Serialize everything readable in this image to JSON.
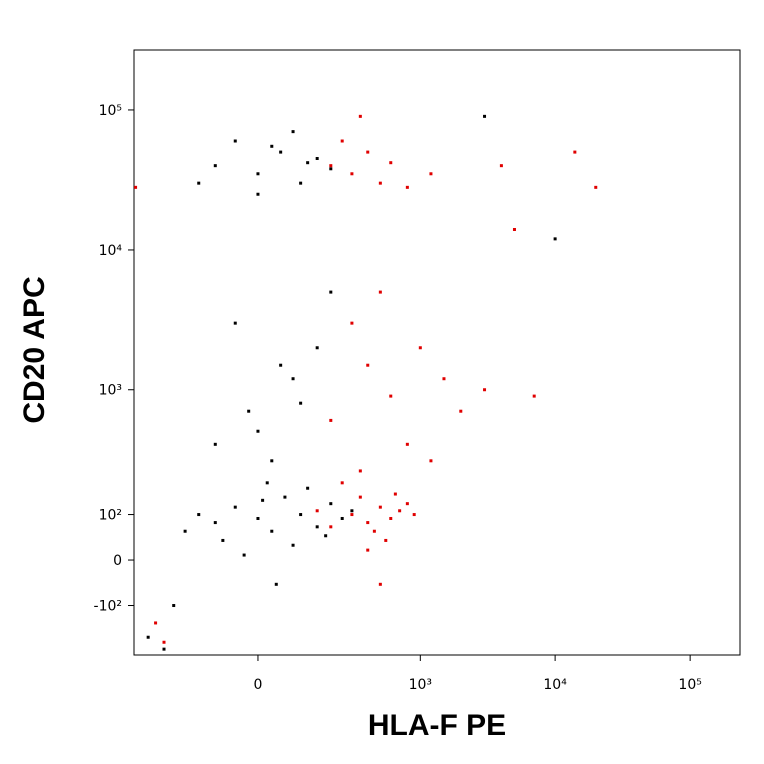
{
  "chart_data": {
    "type": "scatter",
    "x_label": "HLA-F PE",
    "y_label": "CD20 APC",
    "xscale": "logicle",
    "yscale": "logicle",
    "xlim": [
      -514,
      234000
    ],
    "ylim": [
      -278,
      268000
    ],
    "xticks": [
      0,
      {
        "value": 1000,
        "label": "10³"
      },
      {
        "value": 10000,
        "label": "10⁴"
      },
      {
        "value": 100000,
        "label": "10⁵"
      }
    ],
    "yticks": [
      {
        "value": -100,
        "label": "-10²"
      },
      0,
      {
        "value": 100,
        "label": "10²"
      },
      {
        "value": 1000,
        "label": "10³"
      },
      {
        "value": 10000,
        "label": "10⁴"
      },
      {
        "value": 100000,
        "label": "10⁵"
      }
    ],
    "series": [
      {
        "color": "#000000",
        "x": [
          -100,
          -50,
          0,
          30,
          60,
          100,
          150,
          200,
          -150,
          -80,
          20,
          80,
          120,
          250,
          -30,
          40,
          180,
          300,
          -200,
          10,
          0,
          50,
          -50,
          100,
          150,
          -100,
          200,
          30,
          80,
          -20,
          -100,
          0,
          50,
          100,
          150,
          -50,
          200,
          0,
          -150,
          80,
          120,
          30,
          10000,
          3000,
          -400,
          -300,
          -250
        ],
        "y": [
          80,
          120,
          90,
          60,
          150,
          100,
          70,
          130,
          100,
          40,
          200,
          30,
          180,
          90,
          10,
          -50,
          50,
          110,
          60,
          140,
          500,
          1500,
          3000,
          800,
          2000,
          400,
          5000,
          300,
          1200,
          700,
          40000,
          35000,
          50000,
          30000,
          45000,
          60000,
          38000,
          25000,
          30000,
          70000,
          42000,
          55000,
          12000,
          90000,
          -200,
          -250,
          -100
        ]
      },
      {
        "color": "#e00000",
        "x": [
          300,
          400,
          500,
          600,
          350,
          450,
          700,
          250,
          550,
          800,
          200,
          650,
          400,
          900,
          150,
          500,
          -350,
          -300,
          200,
          400,
          600,
          300,
          800,
          1000,
          1500,
          500,
          2000,
          3000,
          7000,
          350,
          1200,
          200,
          300,
          400,
          500,
          250,
          600,
          800,
          350,
          1200,
          4000,
          14000,
          20000,
          5000,
          -500
        ],
        "y": [
          100,
          80,
          120,
          90,
          150,
          60,
          110,
          200,
          40,
          130,
          70,
          160,
          20,
          100,
          110,
          -50,
          -150,
          -220,
          600,
          1500,
          900,
          3000,
          400,
          2000,
          1200,
          5000,
          700,
          1000,
          900,
          250,
          300,
          40000,
          35000,
          50000,
          30000,
          60000,
          42000,
          28000,
          90000,
          35000,
          40000,
          50000,
          28000,
          14000,
          28000
        ]
      }
    ]
  }
}
